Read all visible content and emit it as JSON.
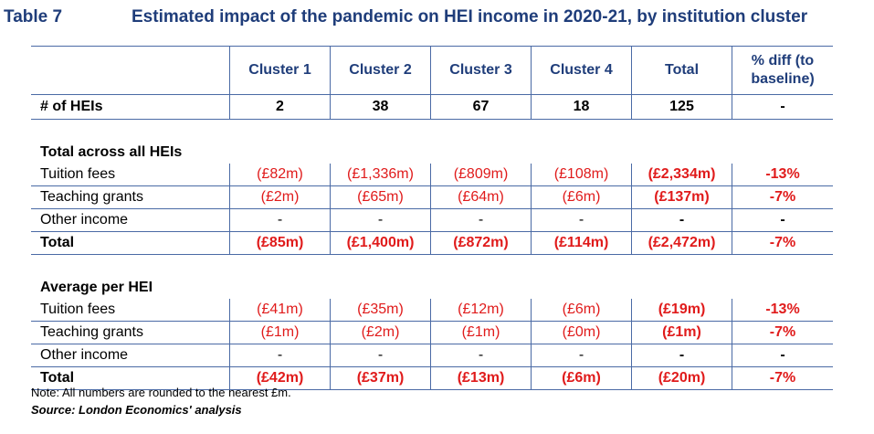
{
  "title": {
    "number": "Table 7",
    "text": "Estimated impact of the pandemic on HEI income in 2020-21, by institution cluster"
  },
  "header": {
    "columns": [
      "Cluster 1",
      "Cluster 2",
      "Cluster 3",
      "Cluster 4",
      "Total"
    ],
    "pct_line1": "% diff (to",
    "pct_line2": "baseline)"
  },
  "heis": {
    "label": "# of HEIs",
    "values": [
      "2",
      "38",
      "67",
      "18",
      "125",
      "-"
    ]
  },
  "total_section": {
    "heading": "Total across all HEIs",
    "rows": [
      {
        "label": "Tuition fees",
        "values": [
          "(£82m)",
          "(£1,336m)",
          "(£809m)",
          "(£108m)",
          "(£2,334m)",
          "-13%"
        ]
      },
      {
        "label": "Teaching grants",
        "values": [
          "(£2m)",
          "(£65m)",
          "(£64m)",
          "(£6m)",
          "(£137m)",
          "-7%"
        ]
      },
      {
        "label": "Other income",
        "values": [
          "-",
          "-",
          "-",
          "-",
          "-",
          "-"
        ]
      }
    ],
    "total": {
      "label": "Total",
      "values": [
        "(£85m)",
        "(£1,400m)",
        "(£872m)",
        "(£114m)",
        "(£2,472m)",
        "-7%"
      ]
    }
  },
  "average_section": {
    "heading": "Average per HEI",
    "rows": [
      {
        "label": "Tuition fees",
        "values": [
          "(£41m)",
          "(£35m)",
          "(£12m)",
          "(£6m)",
          "(£19m)",
          "-13%"
        ]
      },
      {
        "label": "Teaching grants",
        "values": [
          "(£1m)",
          "(£2m)",
          "(£1m)",
          "(£0m)",
          "(£1m)",
          "-7%"
        ]
      },
      {
        "label": "Other income",
        "values": [
          "-",
          "-",
          "-",
          "-",
          "-",
          "-"
        ]
      }
    ],
    "total": {
      "label": "Total",
      "values": [
        "(£42m)",
        "(£37m)",
        "(£13m)",
        "(£6m)",
        "(£20m)",
        "-7%"
      ]
    }
  },
  "note": "Note: All numbers are rounded to the nearest £m.",
  "source": "Source: London Economics' analysis",
  "colors": {
    "title": "#1f3d7a",
    "negative": "#e01b1b",
    "rule": "#4a6aa5"
  }
}
